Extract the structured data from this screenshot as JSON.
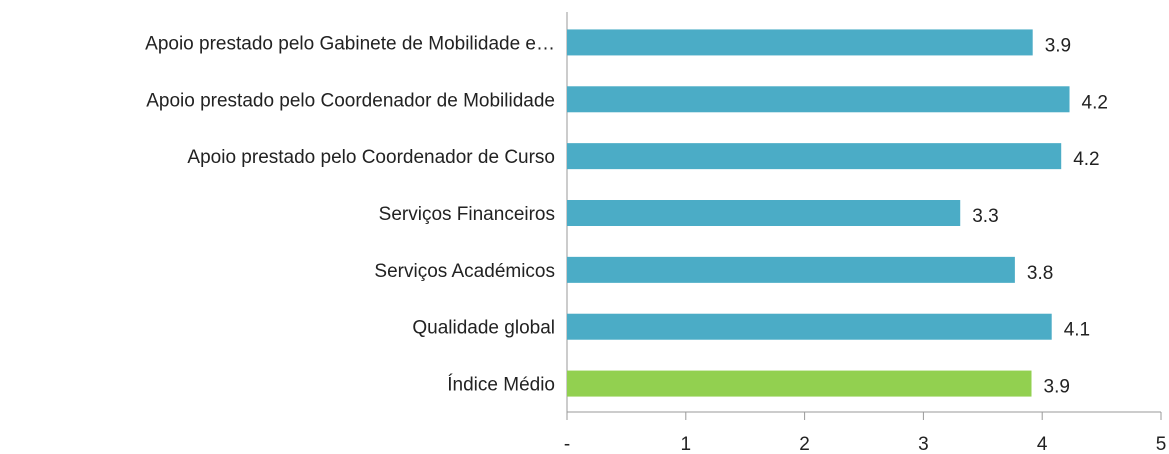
{
  "chart_data": {
    "type": "bar",
    "orientation": "horizontal",
    "categories": [
      "Apoio prestado pelo Gabinete de Mobilidade e…",
      "Apoio prestado pelo Coordenador de Mobilidade",
      "Apoio prestado pelo Coordenador de Curso",
      "Serviços Financeiros",
      "Serviços Académicos",
      "Qualidade global",
      "Índice Médio"
    ],
    "values": [
      3.92,
      4.23,
      4.16,
      3.31,
      3.77,
      4.08,
      3.91
    ],
    "value_labels": [
      "3.9",
      "4.2",
      "4.2",
      "3.3",
      "3.8",
      "4.1",
      "3.9"
    ],
    "colors": [
      "#4bacc6",
      "#4bacc6",
      "#4bacc6",
      "#4bacc6",
      "#4bacc6",
      "#4bacc6",
      "#92d050"
    ],
    "xlim": [
      0,
      5
    ],
    "xticks": [
      {
        "value": 0,
        "label": "-"
      },
      1,
      2,
      3,
      4,
      5
    ],
    "grid": false
  }
}
